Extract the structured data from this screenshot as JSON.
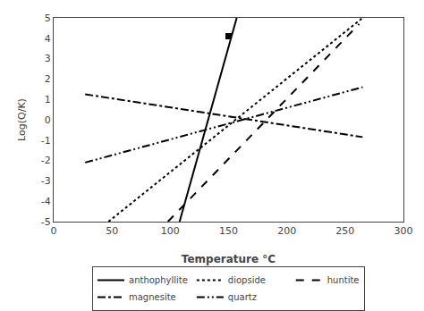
{
  "chart_data": {
    "type": "line",
    "xlabel": "Temperature °C",
    "ylabel": "Log(Q/K)",
    "xlim": [
      0,
      300
    ],
    "ylim": [
      -5,
      5
    ],
    "xticks": [
      0,
      50,
      100,
      150,
      200,
      250,
      300
    ],
    "yticks": [
      -5,
      -4,
      -3,
      -2,
      -1,
      0,
      1,
      2,
      3,
      4,
      5
    ],
    "grid": false,
    "legend": "bottom",
    "series": [
      {
        "name": "anthophyllite",
        "color": "black",
        "line_style": "solid",
        "x": [
          108,
          157
        ],
        "values": [
          -5.0,
          5.0
        ]
      },
      {
        "type": "scatter",
        "color": "black",
        "marker": "square",
        "x": [
          150
        ],
        "values": [
          4.1
        ]
      },
      {
        "name": "diopside",
        "color": "black",
        "line_style": "dotted",
        "x": [
          47,
          265
        ],
        "values": [
          -5.0,
          5.0
        ]
      },
      {
        "name": "huntite",
        "color": "black",
        "line_style": "dashed",
        "x": [
          98,
          262
        ],
        "values": [
          -5.0,
          4.7
        ]
      },
      {
        "name": "magnesite",
        "color": "black",
        "line_style": "dashdot",
        "x": [
          27,
          265
        ],
        "values": [
          1.25,
          -0.85
        ]
      },
      {
        "name": "quartz",
        "color": "black",
        "line_style": "dashdotdot",
        "x": [
          27,
          265
        ],
        "values": [
          -2.1,
          1.6
        ]
      }
    ]
  }
}
